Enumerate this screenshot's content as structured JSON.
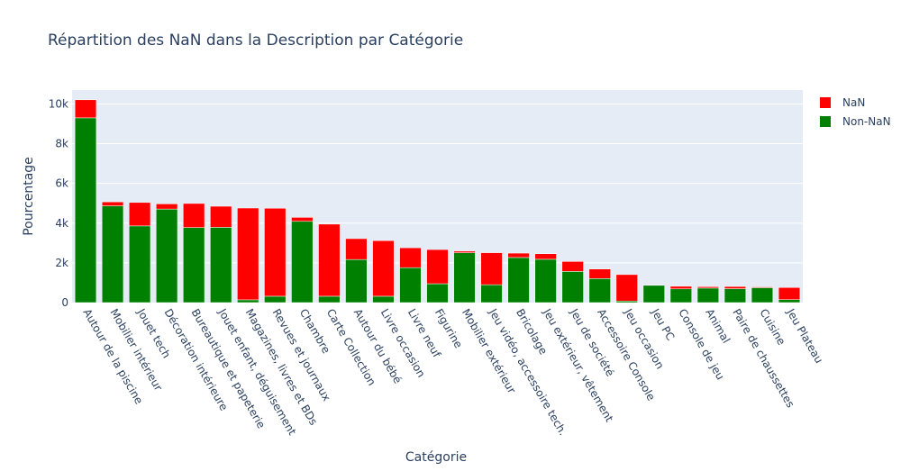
{
  "chart_data": {
    "type": "bar",
    "stacked": true,
    "title": "Répartition des NaN dans la Description par Catégorie",
    "xlabel": "Catégorie",
    "ylabel": "Pourcentage",
    "ylim": [
      0,
      10700
    ],
    "yticks": [
      0,
      2000,
      4000,
      6000,
      8000,
      10000
    ],
    "ytick_labels": [
      "0",
      "2k",
      "4k",
      "6k",
      "8k",
      "10k"
    ],
    "grid": true,
    "legend_position": "top-right",
    "categories": [
      "Autour de la piscine",
      "Mobilier intérieur",
      "Jouet tech",
      "Décoration intérieure",
      "Bureautique et papeterie",
      "Jouet enfant, déguisement",
      "Magazines, livres et BDs",
      "Revues et journaux",
      "Chambre",
      "Carte Collection",
      "Autour du bébé",
      "Livre occasion",
      "Livre neuf",
      "Figurine",
      "Mobilier extérieur",
      "Jeu vidéo, accessoire tech.",
      "Bricolage",
      "Jeu extérieur, vêtement",
      "Jeu de société",
      "Accessoire Console",
      "Jeu occasion",
      "Jeu PC",
      "Console de jeu",
      "Animal",
      "Paire de chaussettes",
      "Cuisine",
      "Jeu Plateau"
    ],
    "series": [
      {
        "name": "Non-NaN",
        "color": "#008000",
        "values": [
          9300,
          4870,
          3860,
          4710,
          3780,
          3790,
          140,
          320,
          4090,
          320,
          2170,
          320,
          1760,
          950,
          2510,
          900,
          2270,
          2180,
          1570,
          1210,
          80,
          870,
          690,
          730,
          700,
          750,
          150
        ]
      },
      {
        "name": "NaN",
        "color": "#ff0000",
        "values": [
          910,
          200,
          1180,
          260,
          1210,
          1060,
          4620,
          4430,
          200,
          3630,
          1050,
          2800,
          1000,
          1720,
          80,
          1610,
          220,
          280,
          500,
          480,
          1330,
          10,
          130,
          70,
          110,
          40,
          610
        ]
      }
    ]
  }
}
